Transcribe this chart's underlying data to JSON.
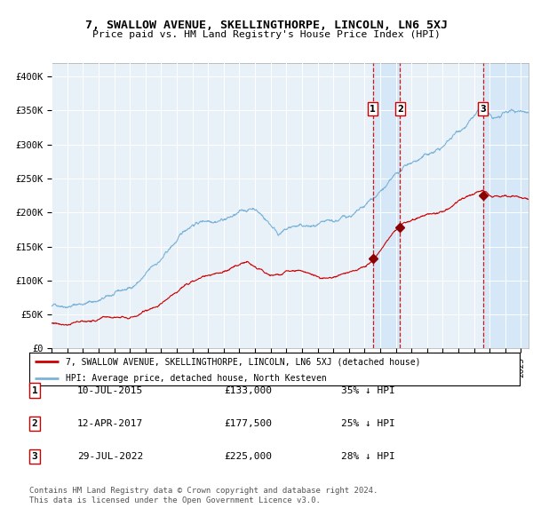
{
  "title": "7, SWALLOW AVENUE, SKELLINGTHORPE, LINCOLN, LN6 5XJ",
  "subtitle": "Price paid vs. HM Land Registry's House Price Index (HPI)",
  "legend_line1": "7, SWALLOW AVENUE, SKELLINGTHORPE, LINCOLN, LN6 5XJ (detached house)",
  "legend_line2": "HPI: Average price, detached house, North Kesteven",
  "transactions": [
    {
      "num": 1,
      "date": "10-JUL-2015",
      "price": 133000,
      "pct": "35% ↓ HPI",
      "year": 2015.53
    },
    {
      "num": 2,
      "date": "12-APR-2017",
      "price": 177500,
      "pct": "25% ↓ HPI",
      "year": 2017.28
    },
    {
      "num": 3,
      "date": "29-JUL-2022",
      "price": 225000,
      "pct": "28% ↓ HPI",
      "year": 2022.57
    }
  ],
  "footer1": "Contains HM Land Registry data © Crown copyright and database right 2024.",
  "footer2": "This data is licensed under the Open Government Licence v3.0.",
  "hpi_color": "#7ab3d9",
  "price_color": "#cc0000",
  "marker_color": "#8b0000",
  "vline_color": "#cc0000",
  "shade_color": "#d6e8f7",
  "ylim": [
    0,
    420000
  ],
  "xlim_start": 1995,
  "xlim_end": 2025.5,
  "chart_bg": "#e8f0f8",
  "grid_color": "#ffffff"
}
